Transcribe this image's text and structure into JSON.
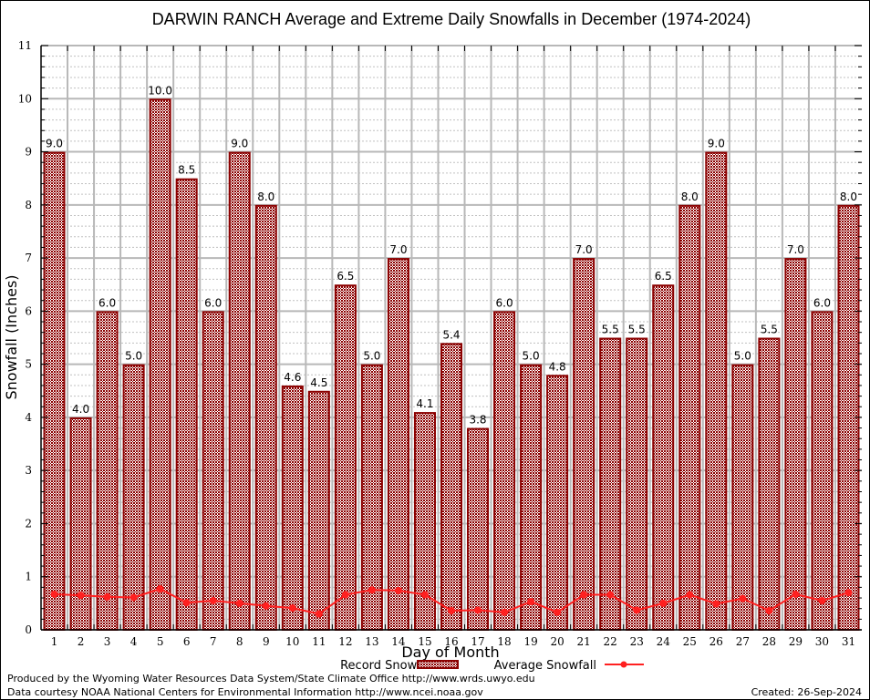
{
  "chart_data": {
    "type": "bar",
    "title": "DARWIN RANCH Average and Extreme Daily Snowfalls in December (1974-2024)",
    "xlabel": "Day of Month",
    "ylabel": "Snowfall (Inches)",
    "ylim": [
      0,
      11
    ],
    "yticks": [
      0,
      1,
      2,
      3,
      4,
      5,
      6,
      7,
      8,
      9,
      10,
      11
    ],
    "grid": true,
    "legend_position": "bottom-center",
    "categories": [
      "1",
      "2",
      "3",
      "4",
      "5",
      "6",
      "7",
      "8",
      "9",
      "10",
      "11",
      "12",
      "13",
      "14",
      "15",
      "16",
      "17",
      "18",
      "19",
      "20",
      "21",
      "22",
      "23",
      "24",
      "25",
      "26",
      "27",
      "28",
      "29",
      "30",
      "31"
    ],
    "series": [
      {
        "name": "Record Snowfall",
        "type": "bar",
        "color": "#8b0000",
        "values": [
          9.0,
          4.0,
          6.0,
          5.0,
          10.0,
          8.5,
          6.0,
          9.0,
          8.0,
          4.6,
          4.5,
          6.5,
          5.0,
          7.0,
          4.1,
          5.4,
          3.8,
          6.0,
          5.0,
          4.8,
          7.0,
          5.5,
          5.5,
          6.5,
          8.0,
          9.0,
          5.0,
          5.5,
          7.0,
          6.0,
          8.0
        ],
        "labels": [
          "9.0",
          "4.0",
          "6.0",
          "5.0",
          "10.0",
          "8.5",
          "6.0",
          "9.0",
          "8.0",
          "4.6",
          "4.5",
          "6.5",
          "5.0",
          "7.0",
          "4.1",
          "5.4",
          "3.8",
          "6.0",
          "5.0",
          "4.8",
          "7.0",
          "5.5",
          "5.5",
          "6.5",
          "8.0",
          "9.0",
          "5.0",
          "5.5",
          "7.0",
          "6.0",
          "8.0"
        ]
      },
      {
        "name": "Average Snowfall",
        "type": "line",
        "color": "#ff2020",
        "values": [
          0.67,
          0.65,
          0.62,
          0.61,
          0.77,
          0.51,
          0.55,
          0.5,
          0.45,
          0.41,
          0.3,
          0.66,
          0.75,
          0.74,
          0.66,
          0.36,
          0.37,
          0.33,
          0.53,
          0.33,
          0.66,
          0.66,
          0.37,
          0.5,
          0.66,
          0.49,
          0.59,
          0.36,
          0.67,
          0.55,
          0.7
        ]
      }
    ]
  },
  "footer": {
    "produced_by": "Produced by the Wyoming Water Resources Data System/State Climate Office http://www.wrds.uwyo.edu",
    "data_courtesy": "Data courtesy NOAA National Centers for Environmental Information http://www.ncei.noaa.gov",
    "created": "Created: 26-Sep-2024"
  }
}
